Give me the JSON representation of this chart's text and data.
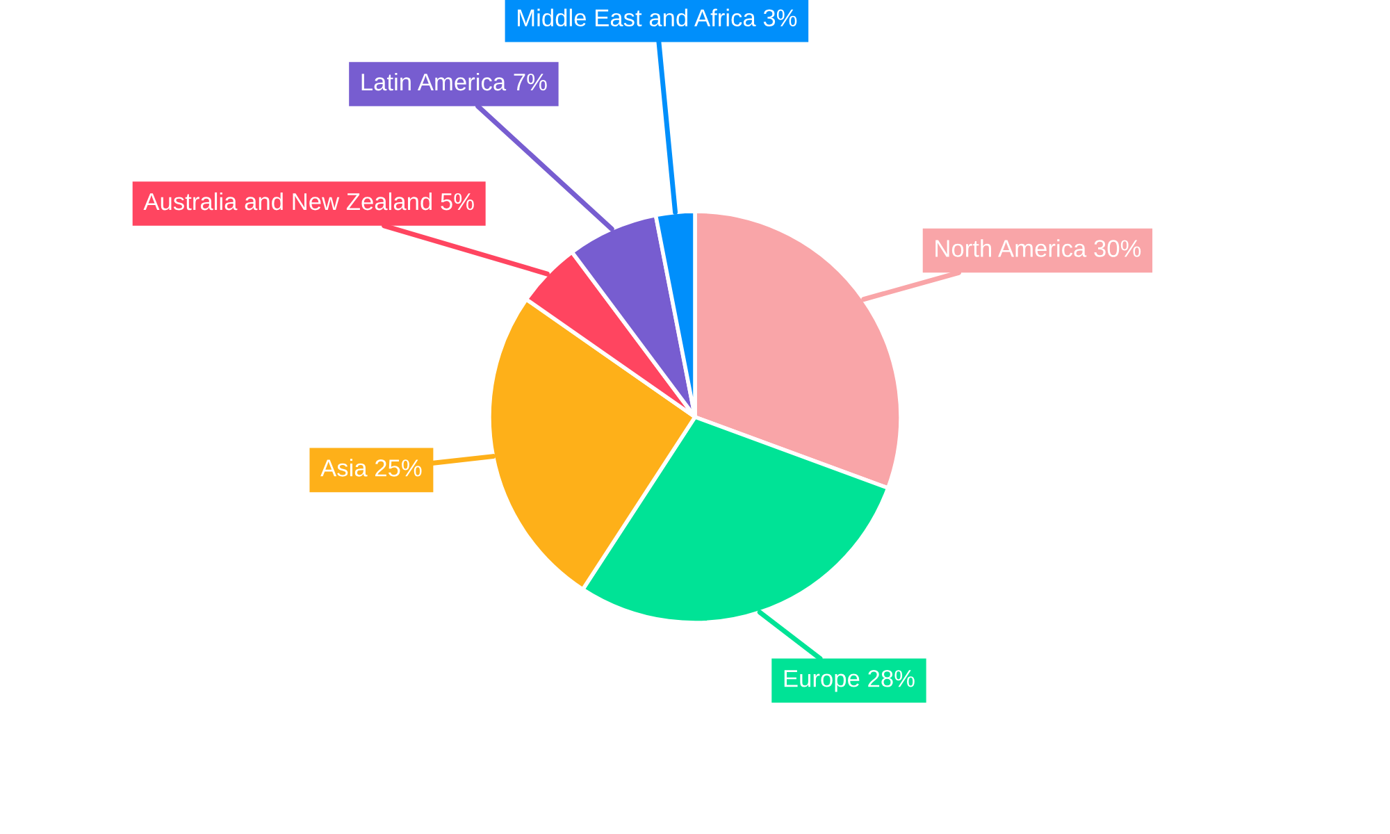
{
  "chart_data": {
    "type": "pie",
    "categories": [
      "North America",
      "Europe",
      "Asia",
      "Australia and New Zealand",
      "Latin America",
      "Middle East and Africa"
    ],
    "values": [
      30,
      28,
      25,
      5,
      7,
      3
    ],
    "value_labels": [
      "30%",
      "28%",
      "25%",
      "5%",
      "7%",
      "3%"
    ],
    "colors": [
      "#f9a5a8",
      "#00e396",
      "#feb019",
      "#ff4560",
      "#775dd0",
      "#008ffb"
    ],
    "legend": false
  }
}
